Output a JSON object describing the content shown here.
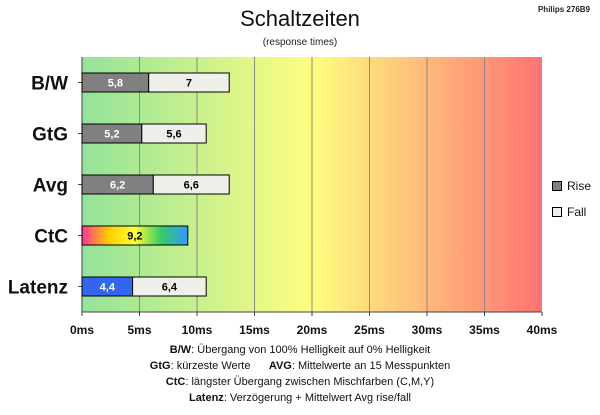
{
  "chart_data": {
    "type": "bar",
    "orientation": "horizontal",
    "stacked": true,
    "title": "Schaltzeiten",
    "subtitle": "(response times)",
    "categories": [
      "B/W",
      "GtG",
      "Avg",
      "CtC",
      "Latenz"
    ],
    "series": [
      {
        "name": "Rise",
        "values": [
          5.8,
          5.2,
          6.2,
          null,
          4.4
        ]
      },
      {
        "name": "Fall",
        "values": [
          7,
          5.6,
          6.6,
          null,
          6.4
        ]
      }
    ],
    "ctc_value": 9.2,
    "data_labels": {
      "rise": [
        "5,8",
        "5,2",
        "6,2",
        "",
        "4,4"
      ],
      "fall": [
        "7",
        "5,6",
        "6,6",
        "",
        "6,4"
      ],
      "ctc": "9,2"
    },
    "xlim": [
      0,
      40
    ],
    "x_ticks": [
      0,
      5,
      10,
      15,
      20,
      25,
      30,
      35,
      40
    ],
    "x_tick_labels": [
      "0ms",
      "5ms",
      "10ms",
      "15ms",
      "20ms",
      "25ms",
      "30ms",
      "35ms",
      "40ms"
    ],
    "grid": true,
    "legend_position": "right",
    "colors": {
      "rise": "#808080",
      "fall": "#f0f0ea",
      "latenz_rise": "#3366ee",
      "ctc_gradient": [
        "#ff3399",
        "#ffcc00",
        "#ffff33",
        "#33cc66",
        "#3399ff"
      ],
      "background_gradient": [
        "#93e39a",
        "#fefe80",
        "#ff7373"
      ]
    }
  },
  "header": {
    "brand": "Philips 276B9"
  },
  "legend": {
    "rise": "Rise",
    "fall": "Fall"
  },
  "notes": [
    {
      "key": "B/W",
      "text": ":  Übergang von 100% Helligkeit auf 0% Helligkeit"
    },
    {
      "key": "GtG",
      "text": ": kürzeste  Werte",
      "key2": "AVG",
      "text2": ": Mittelwerte  an 15 Messpunkten"
    },
    {
      "key": "CtC",
      "text": ": längster Übergang  zwischen Mischfarben (C,M,Y)"
    },
    {
      "key": "Latenz",
      "text": ": Verzögerung  + Mittelwert  Avg rise/fall"
    }
  ]
}
